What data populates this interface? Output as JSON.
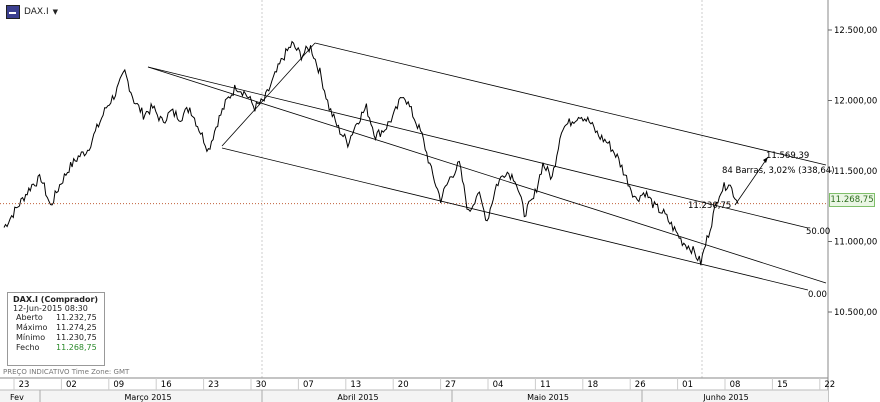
{
  "header": {
    "symbol": "DAX.I",
    "icon": "symbol-icon"
  },
  "info_box": {
    "title": "DAX.I (Comprador)",
    "datetime": "12-Jun-2015 08:30",
    "rows": [
      {
        "label": "Aberto",
        "value": "11.232,75"
      },
      {
        "label": "Máximo",
        "value": "11.274,25"
      },
      {
        "label": "Mínimo",
        "value": "11.230,75"
      },
      {
        "label": "Fecho",
        "value": "11.268,75"
      }
    ]
  },
  "footer_label": "PREÇO INDICATIVO   Time Zone: GMT",
  "current_price_label": "11.268,75",
  "colors": {
    "price_line": "#000000",
    "current_price": "#2f6e1f",
    "dotted_line": "#c0603a",
    "grid": "#bbbbbb"
  },
  "chart_data": {
    "type": "line",
    "y_axis": {
      "ticks": [
        12500,
        12000,
        11500,
        11000,
        10500
      ],
      "tick_labels": [
        "12.500,00",
        "12.000,00",
        "11.500,00",
        "11.000,00",
        "10.500,00"
      ],
      "range": [
        10000,
        12900
      ]
    },
    "x_axis": {
      "day_ticks": [
        "23",
        "02",
        "09",
        "16",
        "23",
        "30",
        "07",
        "13",
        "20",
        "27",
        "04",
        "11",
        "18",
        "26",
        "01",
        "08",
        "15",
        "22"
      ],
      "month_labels": [
        "Fev",
        "Março 2015",
        "Abril 2015",
        "Maio 2015",
        "Junho 2015"
      ]
    },
    "series": [
      {
        "values": [
          11100,
          11200,
          11300,
          11400,
          11450,
          11250,
          11400,
          11520,
          11600,
          11650,
          11800,
          11950,
          12050,
          12200,
          12000,
          11900,
          11950,
          11850,
          11920,
          11880,
          11950,
          11800,
          11650,
          11850,
          12000,
          12100,
          12050,
          11950,
          12000,
          12150,
          12300,
          12400,
          12320,
          12380,
          12200,
          11950,
          11800,
          11700,
          11850,
          11950,
          11750,
          11800,
          11900,
          12050,
          11900,
          11750,
          11500,
          11300,
          11450,
          11550,
          11200,
          11350,
          11150,
          11400,
          11500,
          11450,
          11200,
          11300,
          11550,
          11450,
          11800,
          11850,
          11900,
          11850,
          11750,
          11700,
          11600,
          11450,
          11300,
          11350,
          11250,
          11200,
          11100,
          11000,
          10950,
          10850,
          11100,
          11350,
          11420,
          11268.75
        ]
      }
    ],
    "channel_labels": [
      "50.00",
      "0.00"
    ],
    "annotations": [
      {
        "text": "11.569,39",
        "value": 11569.39
      },
      {
        "text": "84 Barras, 3,02% (338,64)"
      },
      {
        "text": "11.230,75",
        "value": 11230.75
      }
    ],
    "current_price": 11268.75,
    "grid": false
  }
}
